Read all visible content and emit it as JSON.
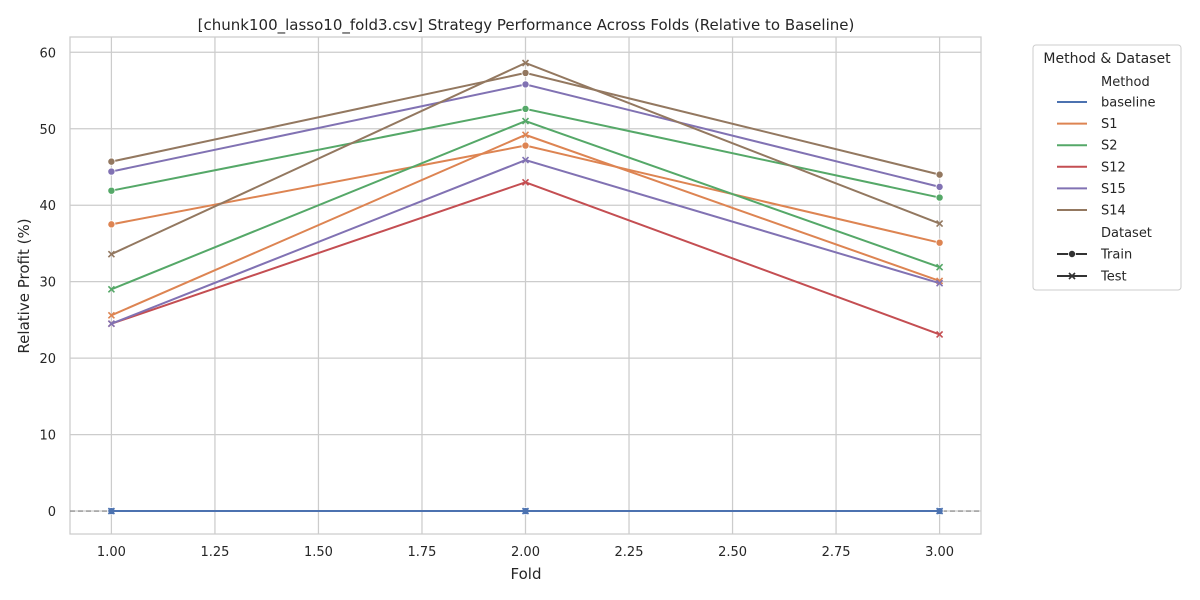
{
  "chart_data": {
    "type": "line",
    "title": "[chunk100_lasso10_fold3.csv] Strategy Performance Across Folds (Relative to Baseline)",
    "xlabel": "Fold",
    "ylabel": "Relative Profit (%)",
    "xlim": [
      0.9,
      3.1
    ],
    "ylim": [
      -3,
      62
    ],
    "xticks": [
      1.0,
      1.25,
      1.5,
      1.75,
      2.0,
      2.25,
      2.5,
      2.75,
      3.0
    ],
    "xtick_labels": [
      "1.00",
      "1.25",
      "1.50",
      "1.75",
      "2.00",
      "2.25",
      "2.50",
      "2.75",
      "3.00"
    ],
    "yticks": [
      0,
      10,
      20,
      30,
      40,
      50,
      60
    ],
    "ytick_labels": [
      "0",
      "10",
      "20",
      "30",
      "40",
      "50",
      "60"
    ],
    "grid": true,
    "reference_line": {
      "y": 0,
      "style": "dashed",
      "color": "#808080"
    },
    "x": [
      1,
      2,
      3
    ],
    "series": [
      {
        "method": "baseline",
        "dataset": "Train",
        "color": "#4c72b0",
        "marker": "circle",
        "values": [
          0,
          0,
          0
        ]
      },
      {
        "method": "baseline",
        "dataset": "Test",
        "color": "#4c72b0",
        "marker": "x",
        "values": [
          0,
          0,
          0
        ]
      },
      {
        "method": "S1",
        "dataset": "Train",
        "color": "#dd8452",
        "marker": "circle",
        "values": [
          37.5,
          47.8,
          35.1
        ]
      },
      {
        "method": "S1",
        "dataset": "Test",
        "color": "#dd8452",
        "marker": "x",
        "values": [
          25.6,
          49.2,
          30.1
        ]
      },
      {
        "method": "S2",
        "dataset": "Train",
        "color": "#55a868",
        "marker": "circle",
        "values": [
          41.9,
          52.6,
          41.0
        ]
      },
      {
        "method": "S2",
        "dataset": "Test",
        "color": "#55a868",
        "marker": "x",
        "values": [
          29.0,
          51.0,
          31.9
        ]
      },
      {
        "method": "S12",
        "dataset": "Test",
        "color": "#c44e52",
        "marker": "x",
        "values": [
          24.5,
          43.0,
          23.1
        ]
      },
      {
        "method": "S15",
        "dataset": "Train",
        "color": "#8172b3",
        "marker": "circle",
        "values": [
          44.4,
          55.8,
          42.4
        ]
      },
      {
        "method": "S15",
        "dataset": "Test",
        "color": "#8172b3",
        "marker": "x",
        "values": [
          24.5,
          45.9,
          29.8
        ]
      },
      {
        "method": "S14",
        "dataset": "Train",
        "color": "#937860",
        "marker": "circle",
        "values": [
          45.7,
          57.3,
          44.0
        ]
      },
      {
        "method": "S14",
        "dataset": "Test",
        "color": "#937860",
        "marker": "x",
        "values": [
          33.6,
          58.6,
          37.6
        ]
      }
    ],
    "legend": {
      "title": "Method & Dataset",
      "placement": "outside-right",
      "method_header": "Method",
      "methods": [
        {
          "label": "baseline",
          "color": "#4c72b0"
        },
        {
          "label": "S1",
          "color": "#dd8452"
        },
        {
          "label": "S2",
          "color": "#55a868"
        },
        {
          "label": "S12",
          "color": "#c44e52"
        },
        {
          "label": "S15",
          "color": "#8172b3"
        },
        {
          "label": "S14",
          "color": "#937860"
        }
      ],
      "dataset_header": "Dataset",
      "datasets": [
        {
          "label": "Train",
          "marker": "circle"
        },
        {
          "label": "Test",
          "marker": "x"
        }
      ]
    }
  }
}
